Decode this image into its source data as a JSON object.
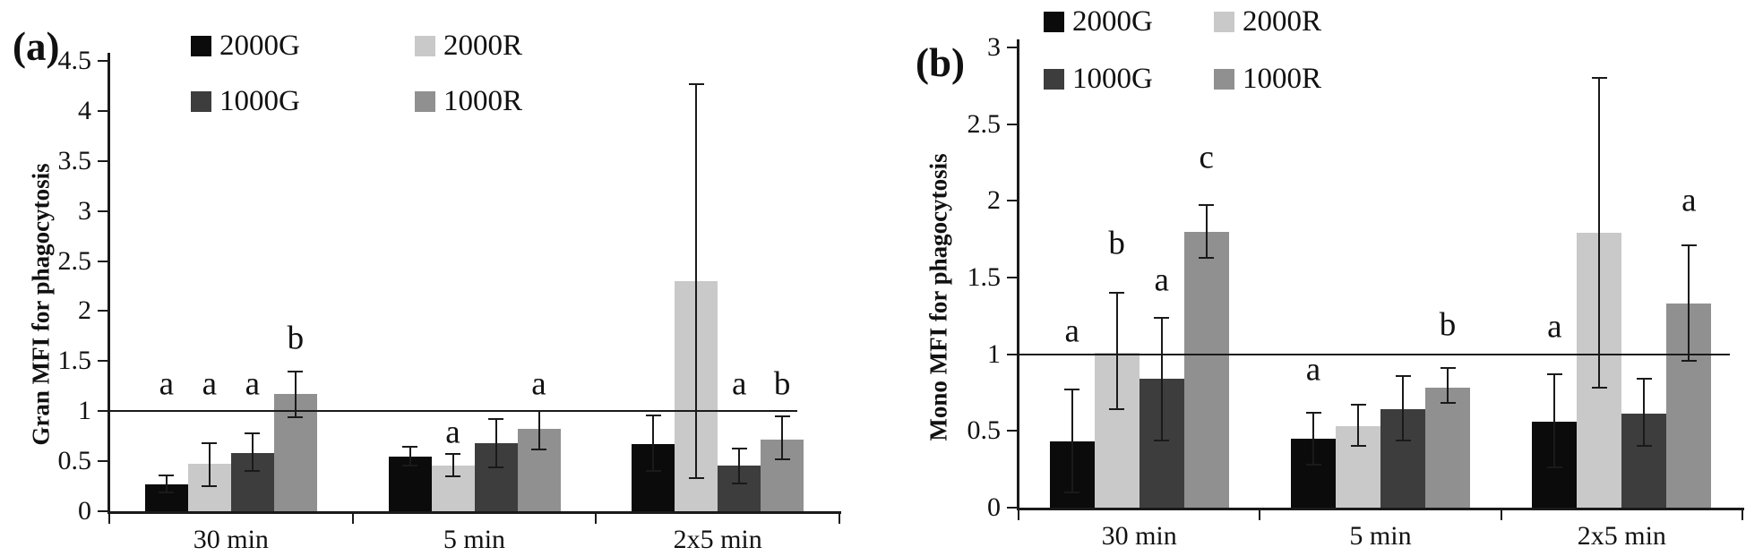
{
  "figure_title": "",
  "series_legend": [
    {
      "label": "2000G",
      "color": "#0b0b0b"
    },
    {
      "label": "2000R",
      "color": "#c9c9c9"
    },
    {
      "label": "1000G",
      "color": "#3d3d3d"
    },
    {
      "label": "1000R",
      "color": "#909090"
    }
  ],
  "chart_data": [
    {
      "type": "bar",
      "panel_label": "(a)",
      "title": "",
      "xlabel": "",
      "ylabel": "Gran MFI for phagocytosis",
      "ylim": [
        0,
        4.5
      ],
      "ytick_step": 0.5,
      "grid": false,
      "reference_line_y": 1,
      "legend_position": "top-left-two-rows",
      "categories": [
        "30 min",
        "5 min",
        "2x5 min"
      ],
      "series": [
        {
          "name": "2000G",
          "values": [
            0.27,
            0.55,
            0.67
          ],
          "err_low": [
            0.19,
            0.46,
            0.4
          ],
          "err_high": [
            0.36,
            0.64,
            0.96
          ]
        },
        {
          "name": "2000R",
          "values": [
            0.47,
            0.46,
            2.3
          ],
          "err_low": [
            0.25,
            0.35,
            0.33
          ],
          "err_high": [
            0.68,
            0.57,
            4.27
          ]
        },
        {
          "name": "1000G",
          "values": [
            0.58,
            0.68,
            0.46
          ],
          "err_low": [
            0.4,
            0.44,
            0.28
          ],
          "err_high": [
            0.78,
            0.92,
            0.63
          ]
        },
        {
          "name": "1000R",
          "values": [
            1.17,
            0.82,
            0.72
          ],
          "err_low": [
            0.94,
            0.62,
            0.52
          ],
          "err_high": [
            1.4,
            1.0,
            0.95
          ]
        }
      ],
      "sig_annotations": [
        {
          "text": "a",
          "category": 0,
          "series": 0,
          "y": 1.27
        },
        {
          "text": "a",
          "category": 0,
          "series": 1,
          "y": 1.27
        },
        {
          "text": "a",
          "category": 0,
          "series": 2,
          "y": 1.27
        },
        {
          "text": "b",
          "category": 0,
          "series": 3,
          "y": 1.73
        },
        {
          "text": "a",
          "category": 1,
          "series": 1,
          "y": 0.79
        },
        {
          "text": "a",
          "category": 1,
          "series": 3,
          "y": 1.27
        },
        {
          "text": "a",
          "category": 2,
          "series": 2,
          "y": 1.27
        },
        {
          "text": "b",
          "category": 2,
          "series": 3,
          "y": 1.27
        }
      ]
    },
    {
      "type": "bar",
      "panel_label": "(b)",
      "title": "",
      "xlabel": "",
      "ylabel": "Mono MFI for phagocytosis",
      "ylim": [
        0,
        3
      ],
      "ytick_step": 0.5,
      "grid": false,
      "reference_line_y": 1,
      "legend_position": "top-two-rows",
      "categories": [
        "30 min",
        "5 min",
        "2x5 min"
      ],
      "series": [
        {
          "name": "2000G",
          "values": [
            0.43,
            0.45,
            0.56
          ],
          "err_low": [
            0.1,
            0.28,
            0.26
          ],
          "err_high": [
            0.77,
            0.62,
            0.87
          ]
        },
        {
          "name": "2000R",
          "values": [
            1.01,
            0.53,
            1.79
          ],
          "err_low": [
            0.64,
            0.4,
            0.78
          ],
          "err_high": [
            1.4,
            0.67,
            2.8
          ]
        },
        {
          "name": "1000G",
          "values": [
            0.84,
            0.64,
            0.61
          ],
          "err_low": [
            0.44,
            0.44,
            0.4
          ],
          "err_high": [
            1.24,
            0.86,
            0.84
          ]
        },
        {
          "name": "1000R",
          "values": [
            1.8,
            0.78,
            1.33
          ],
          "err_low": [
            1.63,
            0.68,
            0.96
          ],
          "err_high": [
            1.97,
            0.91,
            1.71
          ]
        }
      ],
      "sig_annotations": [
        {
          "text": "a",
          "category": 0,
          "series": 0,
          "y": 1.15
        },
        {
          "text": "b",
          "category": 0,
          "series": 1,
          "y": 1.72
        },
        {
          "text": "a",
          "category": 0,
          "series": 2,
          "y": 1.48
        },
        {
          "text": "c",
          "category": 0,
          "series": 3,
          "y": 2.28
        },
        {
          "text": "a",
          "category": 1,
          "series": 0,
          "y": 0.9
        },
        {
          "text": "b",
          "category": 1,
          "series": 3,
          "y": 1.19
        },
        {
          "text": "a",
          "category": 2,
          "series": 0,
          "y": 1.18
        },
        {
          "text": "a",
          "category": 2,
          "series": 3,
          "y": 2.0
        }
      ]
    }
  ]
}
